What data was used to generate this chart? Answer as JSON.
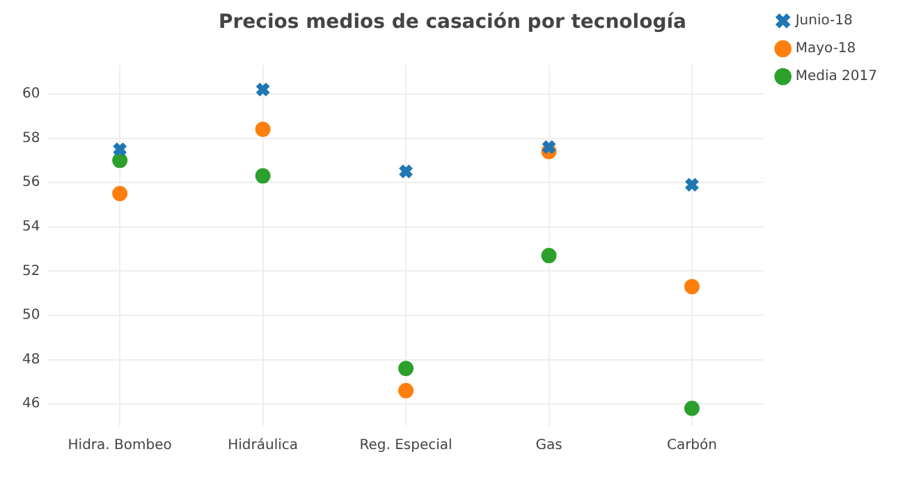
{
  "chart_data": {
    "type": "scatter",
    "title": "Precios medios de casación por tecnología",
    "categories": [
      "Hidra. Bombeo",
      "Hidráulica",
      "Reg. Especial",
      "Gas",
      "Carbón"
    ],
    "series": [
      {
        "name": "Junio-18",
        "color": "#1f77b4",
        "marker": "cross",
        "values": [
          57.5,
          60.2,
          56.5,
          57.6,
          55.9
        ]
      },
      {
        "name": "Mayo-18",
        "color": "#ff7f0e",
        "marker": "circle",
        "values": [
          55.5,
          58.4,
          46.6,
          57.4,
          51.3
        ]
      },
      {
        "name": "Media 2017",
        "color": "#2ca02c",
        "marker": "circle",
        "values": [
          57.0,
          56.3,
          47.6,
          52.7,
          45.8
        ]
      }
    ],
    "ylim": [
      45,
      61.3
    ],
    "yticks": [
      46,
      48,
      50,
      52,
      54,
      56,
      58,
      60
    ],
    "grid": true,
    "legend": "top right"
  }
}
